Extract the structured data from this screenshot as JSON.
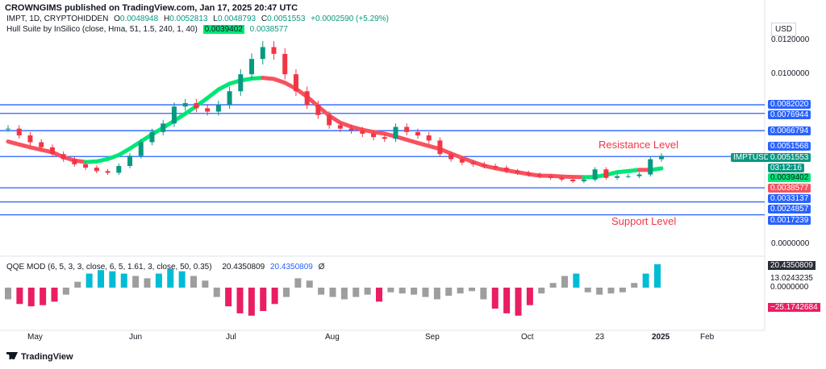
{
  "header": {
    "credit": "CROWNGIMS published on TradingView.com, Jan 17, 2025 20:47 UTC",
    "symbol": "IMPT, 1D, CRYPTOHIDDEN",
    "o_label": "O",
    "o_val": "0.0048948",
    "h_label": "H",
    "h_val": "0.0052813",
    "l_label": "L",
    "l_val": "0.0048793",
    "c_label": "C",
    "c_val": "0.0051553",
    "change": "+0.0002590 (+5.29%)",
    "indicator": "Hull Suite by InSilico (close, Hma, 51, 1.5, 240, 1, 40)",
    "ind_val1": "0.0039402",
    "ind_val2": "0.0038577",
    "currency": "USD"
  },
  "annotations": {
    "resistance": "Resistance Level",
    "support": "Support Level"
  },
  "price_axis": {
    "labels": [
      "0.0120000",
      "0.0100000",
      "0.0000000"
    ],
    "boxes": [
      {
        "text": "0.0082020",
        "bg": "#2962ff",
        "fg": "#ffffff"
      },
      {
        "text": "0.0076944",
        "bg": "#2962ff",
        "fg": "#ffffff"
      },
      {
        "text": "0.0066794",
        "bg": "#2962ff",
        "fg": "#ffffff"
      },
      {
        "text": "0.0051568",
        "bg": "#2962ff",
        "fg": "#ffffff"
      },
      {
        "text": "IMPTUSD",
        "bg": "#089981",
        "fg": "#ffffff"
      },
      {
        "text": "0.0051553",
        "bg": "#089981",
        "fg": "#ffffff"
      },
      {
        "text": "03:12:16",
        "bg": "#089981",
        "fg": "#ffffff"
      },
      {
        "text": "0.0039402",
        "bg": "#00e676",
        "fg": "#131722"
      },
      {
        "text": "0.0038577",
        "bg": "#f7525f",
        "fg": "#ffffff"
      },
      {
        "text": "0.0033137",
        "bg": "#2962ff",
        "fg": "#ffffff"
      },
      {
        "text": "0.0024857",
        "bg": "#2962ff",
        "fg": "#ffffff"
      },
      {
        "text": "0.0017239",
        "bg": "#2962ff",
        "fg": "#ffffff"
      }
    ]
  },
  "qqe": {
    "name": "QQE MOD (6, 5, 3, 3, close, 6, 5, 1.61, 3, close, 50, 0.35)",
    "v1": "20.4350809",
    "v2": "20.4350809",
    "v3": "Ø",
    "axis": [
      "20.4350809",
      "13.0243235",
      "0.0000000",
      "−25.1742684"
    ]
  },
  "x_axis": [
    "May",
    "Jun",
    "Jul",
    "Aug",
    "Sep",
    "Oct",
    "23",
    "2025",
    "Feb"
  ],
  "footer": "TradingView",
  "chart_data": {
    "type": "candlestick",
    "symbol": "IMPTUSD",
    "horizontal_levels": [
      0.008202,
      0.0076944,
      0.0066794,
      0.0051568,
      0.0033137,
      0.0024857,
      0.0017239
    ],
    "last_close": 0.0051553,
    "hull": {
      "up_color": "#00e676",
      "down_color": "#f7525f"
    },
    "series_close": [
      0.0068,
      0.0064,
      0.006,
      0.0057,
      0.0053,
      0.005,
      0.0047,
      0.0045,
      0.0043,
      0.0042,
      0.0046,
      0.0052,
      0.006,
      0.0066,
      0.0071,
      0.0081,
      0.0083,
      0.008,
      0.0078,
      0.0082,
      0.009,
      0.01,
      0.0109,
      0.0116,
      0.0112,
      0.01,
      0.009,
      0.0082,
      0.0076,
      0.007,
      0.0068,
      0.0067,
      0.0065,
      0.0063,
      0.0062,
      0.0069,
      0.0066,
      0.0064,
      0.0061,
      0.0053,
      0.005,
      0.0048,
      0.0047,
      0.0046,
      0.0045,
      0.0043,
      0.0042,
      0.0041,
      0.004,
      0.0039,
      0.0038,
      0.0037,
      0.0038,
      0.0044,
      0.0039,
      0.004,
      0.004,
      0.0041,
      0.005,
      0.0052
    ],
    "qqe_values": [
      -10,
      -14,
      -16,
      -15,
      -12,
      -6,
      5,
      12,
      15,
      14,
      12,
      10,
      8,
      12,
      16,
      14,
      10,
      6,
      -8,
      -16,
      -22,
      -24,
      -20,
      -14,
      -8,
      8,
      6,
      -6,
      -8,
      -10,
      -8,
      -6,
      -12,
      -4,
      -5,
      -6,
      -8,
      -10,
      -7,
      -5,
      -3,
      -10,
      -18,
      -22,
      -24,
      -15,
      -5,
      4,
      10,
      12,
      -4,
      -6,
      -5,
      -4,
      4,
      12,
      20
    ]
  }
}
